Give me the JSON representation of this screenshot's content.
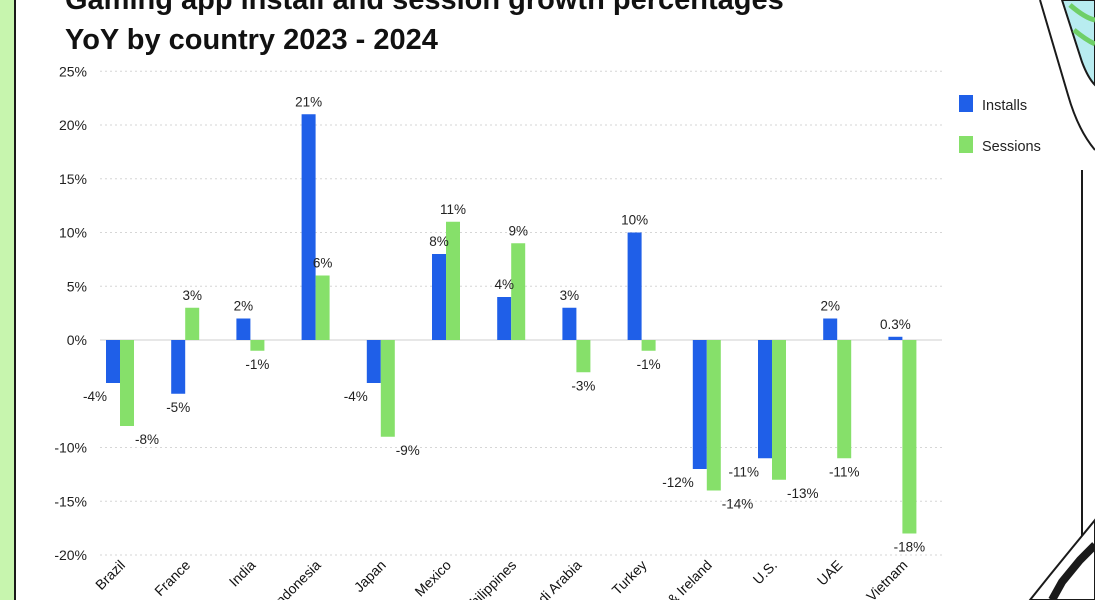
{
  "chart_data": {
    "type": "bar",
    "title_line1": "Gaming app install and session growth percentages",
    "title_line2": "YoY by country 2023 - 2024",
    "categories": [
      "Brazil",
      "France",
      "India",
      "Indonesia",
      "Japan",
      "Mexico",
      "Philippines",
      "Saudi Arabia",
      "Turkey",
      "UK & Ireland",
      "U.S.",
      "UAE",
      "Vietnam"
    ],
    "series": [
      {
        "name": "Installs",
        "color": "#1f5fe8",
        "values": [
          -4,
          -5,
          2,
          21,
          -4,
          8,
          4,
          3,
          10,
          -12,
          -11,
          2,
          0.3
        ],
        "labels": [
          "-4%",
          "-5%",
          "2%",
          "21%",
          "-4%",
          "8%",
          "4%",
          "3%",
          "10%",
          "-12%",
          "-11%",
          "2%",
          "0.3%"
        ]
      },
      {
        "name": "Sessions",
        "color": "#86e06a",
        "values": [
          -8,
          3,
          -1,
          6,
          -9,
          11,
          9,
          -3,
          -1,
          -14,
          -13,
          -11,
          -18
        ],
        "labels": [
          "-8%",
          "3%",
          "-1%",
          "6%",
          "-9%",
          "11%",
          "9%",
          "-3%",
          "-1%",
          "-14%",
          "-13%",
          "-11%",
          "-18%"
        ]
      }
    ],
    "yticks": [
      25,
      20,
      15,
      10,
      5,
      0,
      -10,
      -15,
      -20
    ],
    "ytick_labels": [
      "25%",
      "20%",
      "15%",
      "10%",
      "5%",
      "0%",
      "-10%",
      "-15%",
      "-20%"
    ],
    "ylim": [
      -20,
      25
    ],
    "legend_position": "top-right",
    "grid": true
  }
}
